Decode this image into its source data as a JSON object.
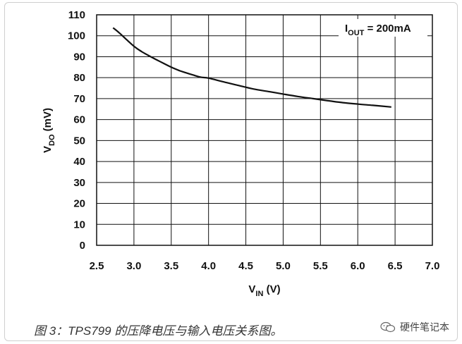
{
  "chart_data": {
    "type": "line",
    "annotation": {
      "main": "I",
      "sub": "OUT",
      "rest": " = 200mA"
    },
    "xlabel": {
      "main": "V",
      "sub": "IN",
      "rest": " (V)"
    },
    "ylabel": {
      "main": "V",
      "sub": "DO",
      "rest": " (mV)"
    },
    "xlim": [
      2.5,
      7.0
    ],
    "ylim": [
      0,
      110
    ],
    "xticks": [
      "2.5",
      "3.0",
      "3.5",
      "4.0",
      "4.5",
      "5.0",
      "5.5",
      "6.0",
      "6.5",
      "7.0"
    ],
    "yticks": [
      "0",
      "10",
      "20",
      "30",
      "40",
      "50",
      "60",
      "70",
      "80",
      "90",
      "100",
      "110"
    ],
    "grid": true,
    "series": [
      {
        "x": [
          2.72,
          2.8,
          2.9,
          3.0,
          3.1,
          3.2,
          3.3,
          3.4,
          3.5,
          3.6,
          3.7,
          3.8,
          3.9,
          4.0,
          4.2,
          4.4,
          4.6,
          4.8,
          5.0,
          5.2,
          5.4,
          5.6,
          5.8,
          6.0,
          6.2,
          6.45
        ],
        "y": [
          103.8,
          101.5,
          98.2,
          95.0,
          92.5,
          90.5,
          88.6,
          86.8,
          85.0,
          83.5,
          82.3,
          81.2,
          80.2,
          79.8,
          78.0,
          76.3,
          74.6,
          73.4,
          72.2,
          71.0,
          70.0,
          69.0,
          68.1,
          67.4,
          66.8,
          66.0
        ]
      }
    ]
  },
  "caption": "图 3：TPS799 的压降电压与输入电压关系图。",
  "brand": {
    "icon": "wechat-icon",
    "text": "硬件笔记本"
  }
}
